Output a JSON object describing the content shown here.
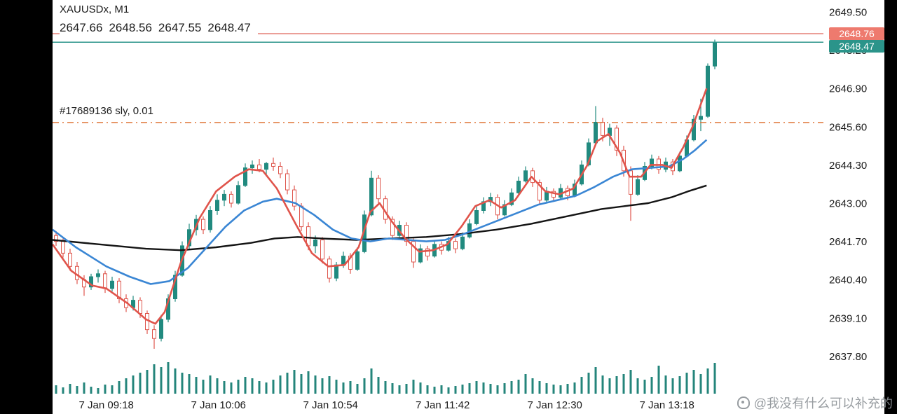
{
  "header": {
    "symbol": "XAUUSDx, M1",
    "ohlc": {
      "open": "2647.66",
      "high": "2648.56",
      "low": "2647.55",
      "close": "2648.47"
    }
  },
  "quote": {
    "ask": "2648.76",
    "bid": "2648.47",
    "ask_price": 2648.76,
    "bid_price": 2648.47
  },
  "order_line": {
    "label": "#17689136 sly, 0.01",
    "price": 2645.74
  },
  "watermark": {
    "text": "@我没有什么可以补充的"
  },
  "colors": {
    "background": "#ffffff",
    "bezel": "#000000",
    "text": "#1c1c1c",
    "bull_candle": "#218a7f",
    "bear_candle": "#de554c",
    "ma_fast_red": "#e0544b",
    "ma_mid_blue": "#3a86d4",
    "ma_slow_black": "#141414",
    "ask_line": "#e2776e",
    "bid_line": "#2b948a",
    "order_line": "#e07b3f",
    "volume": "#24857b",
    "ask_tag_bg": "#ee7a6e",
    "bid_tag_bg": "#2b948a"
  },
  "chart_data": {
    "type": "candlestick",
    "symbol": "XAUUSDx",
    "timeframe": "M1",
    "title": "XAUUSDx, M1",
    "start_time": "7 Jan 08:55",
    "candle_interval_min": 3,
    "price_axis": {
      "ticks": [
        2649.5,
        2648.2,
        2646.9,
        2645.6,
        2644.3,
        2643.0,
        2641.7,
        2640.4,
        2639.1,
        2637.8
      ],
      "min": 2637.0,
      "max": 2649.8,
      "grid": false
    },
    "time_axis": {
      "labels": [
        "7 Jan 09:18",
        "7 Jan 10:06",
        "7 Jan 10:54",
        "7 Jan 11:42",
        "7 Jan 12:30",
        "7 Jan 13:18"
      ],
      "minutes_from_start": [
        23,
        71,
        119,
        167,
        215,
        263
      ]
    },
    "candles": [
      [
        2641.9,
        2642.05,
        2641.55,
        2641.7
      ],
      [
        2641.7,
        2641.8,
        2641.15,
        2641.3
      ],
      [
        2641.3,
        2641.45,
        2640.7,
        2640.85
      ],
      [
        2640.85,
        2641.0,
        2640.25,
        2640.4
      ],
      [
        2640.4,
        2640.55,
        2639.85,
        2640.15
      ],
      [
        2640.15,
        2640.6,
        2640.05,
        2640.5
      ],
      [
        2640.5,
        2640.75,
        2640.3,
        2640.6
      ],
      [
        2640.6,
        2640.7,
        2639.95,
        2640.1
      ],
      [
        2640.1,
        2640.5,
        2640.0,
        2640.35
      ],
      [
        2640.35,
        2640.45,
        2639.6,
        2639.75
      ],
      [
        2639.75,
        2639.9,
        2639.3,
        2639.45
      ],
      [
        2639.45,
        2639.85,
        2639.35,
        2639.7
      ],
      [
        2639.7,
        2639.8,
        2639.1,
        2639.25
      ],
      [
        2639.25,
        2639.35,
        2638.55,
        2638.7
      ],
      [
        2638.7,
        2638.85,
        2638.05,
        2638.4
      ],
      [
        2638.4,
        2639.2,
        2638.3,
        2639.05
      ],
      [
        2639.05,
        2639.9,
        2638.95,
        2639.75
      ],
      [
        2639.75,
        2640.7,
        2639.65,
        2640.55
      ],
      [
        2640.55,
        2641.7,
        2640.5,
        2641.55
      ],
      [
        2641.55,
        2642.3,
        2641.45,
        2642.1
      ],
      [
        2642.1,
        2642.6,
        2641.9,
        2642.45
      ],
      [
        2642.45,
        2642.55,
        2641.95,
        2642.1
      ],
      [
        2642.1,
        2642.9,
        2642.0,
        2642.75
      ],
      [
        2642.75,
        2643.3,
        2642.6,
        2643.1
      ],
      [
        2643.1,
        2643.45,
        2642.9,
        2643.3
      ],
      [
        2643.3,
        2643.4,
        2642.85,
        2643.0
      ],
      [
        2643.0,
        2643.75,
        2642.95,
        2643.6
      ],
      [
        2643.6,
        2644.35,
        2643.55,
        2644.2
      ],
      [
        2644.2,
        2644.45,
        2644.0,
        2644.3
      ],
      [
        2644.3,
        2644.5,
        2644.05,
        2644.15
      ],
      [
        2644.15,
        2644.4,
        2643.95,
        2644.35
      ],
      [
        2644.35,
        2644.55,
        2644.1,
        2644.25
      ],
      [
        2644.25,
        2644.4,
        2643.85,
        2644.0
      ],
      [
        2644.0,
        2644.15,
        2643.3,
        2643.45
      ],
      [
        2643.45,
        2643.6,
        2642.75,
        2642.9
      ],
      [
        2642.9,
        2643.0,
        2642.05,
        2642.2
      ],
      [
        2642.2,
        2642.35,
        2641.4,
        2641.55
      ],
      [
        2641.55,
        2641.9,
        2641.3,
        2641.75
      ],
      [
        2641.75,
        2641.85,
        2640.95,
        2641.1
      ],
      [
        2641.1,
        2641.2,
        2640.3,
        2640.45
      ],
      [
        2640.45,
        2641.0,
        2640.35,
        2640.9
      ],
      [
        2640.9,
        2641.35,
        2640.8,
        2641.2
      ],
      [
        2641.2,
        2641.3,
        2640.6,
        2640.75
      ],
      [
        2640.75,
        2641.5,
        2640.7,
        2641.35
      ],
      [
        2641.35,
        2642.75,
        2641.3,
        2642.6
      ],
      [
        2642.6,
        2644.1,
        2642.55,
        2643.85
      ],
      [
        2643.85,
        2643.95,
        2643.0,
        2643.15
      ],
      [
        2643.15,
        2643.25,
        2642.3,
        2642.45
      ],
      [
        2642.45,
        2642.55,
        2641.75,
        2641.9
      ],
      [
        2641.9,
        2642.4,
        2641.85,
        2642.25
      ],
      [
        2642.25,
        2642.35,
        2641.55,
        2641.7
      ],
      [
        2641.7,
        2641.8,
        2640.8,
        2641.0
      ],
      [
        2641.0,
        2641.6,
        2640.95,
        2641.45
      ],
      [
        2641.45,
        2641.55,
        2641.05,
        2641.2
      ],
      [
        2641.2,
        2641.75,
        2641.15,
        2641.6
      ],
      [
        2641.6,
        2641.7,
        2641.25,
        2641.4
      ],
      [
        2641.4,
        2641.85,
        2641.35,
        2641.7
      ],
      [
        2641.7,
        2641.8,
        2641.3,
        2641.45
      ],
      [
        2641.45,
        2642.0,
        2641.4,
        2641.85
      ],
      [
        2641.85,
        2642.45,
        2641.8,
        2642.3
      ],
      [
        2642.3,
        2642.9,
        2642.25,
        2642.75
      ],
      [
        2642.75,
        2643.2,
        2642.65,
        2643.05
      ],
      [
        2643.05,
        2643.35,
        2642.9,
        2643.2
      ],
      [
        2643.2,
        2643.3,
        2642.45,
        2642.6
      ],
      [
        2642.6,
        2643.1,
        2642.55,
        2642.95
      ],
      [
        2642.95,
        2643.5,
        2642.9,
        2643.35
      ],
      [
        2643.35,
        2643.9,
        2643.3,
        2643.75
      ],
      [
        2643.75,
        2644.25,
        2643.7,
        2644.1
      ],
      [
        2644.1,
        2644.2,
        2643.55,
        2643.7
      ],
      [
        2643.7,
        2643.8,
        2642.95,
        2643.1
      ],
      [
        2643.1,
        2643.55,
        2643.0,
        2643.4
      ],
      [
        2643.4,
        2643.5,
        2643.05,
        2643.2
      ],
      [
        2643.2,
        2643.65,
        2643.15,
        2643.5
      ],
      [
        2643.5,
        2643.6,
        2643.1,
        2643.25
      ],
      [
        2643.25,
        2643.8,
        2643.2,
        2643.65
      ],
      [
        2643.65,
        2644.45,
        2643.6,
        2644.3
      ],
      [
        2644.3,
        2645.2,
        2644.25,
        2645.05
      ],
      [
        2645.05,
        2646.3,
        2645.0,
        2645.75
      ],
      [
        2645.75,
        2645.9,
        2645.1,
        2645.3
      ],
      [
        2645.3,
        2645.7,
        2644.95,
        2645.55
      ],
      [
        2645.55,
        2645.65,
        2644.6,
        2644.8
      ],
      [
        2644.8,
        2644.95,
        2643.9,
        2644.1
      ],
      [
        2644.1,
        2644.25,
        2642.4,
        2643.3
      ],
      [
        2643.3,
        2643.95,
        2643.25,
        2643.8
      ],
      [
        2643.8,
        2644.4,
        2643.75,
        2644.25
      ],
      [
        2644.25,
        2644.65,
        2644.15,
        2644.5
      ],
      [
        2644.5,
        2644.6,
        2644.0,
        2644.15
      ],
      [
        2644.15,
        2644.55,
        2644.05,
        2644.4
      ],
      [
        2644.4,
        2644.5,
        2643.95,
        2644.1
      ],
      [
        2644.1,
        2644.75,
        2644.05,
        2644.6
      ],
      [
        2644.6,
        2645.3,
        2644.55,
        2645.15
      ],
      [
        2645.15,
        2646.0,
        2645.1,
        2645.85
      ],
      [
        2645.85,
        2646.55,
        2645.45,
        2645.95
      ],
      [
        2645.95,
        2647.75,
        2645.9,
        2647.66
      ],
      [
        2647.66,
        2648.56,
        2647.55,
        2648.47
      ]
    ],
    "volumes": [
      12,
      9,
      14,
      11,
      16,
      10,
      8,
      13,
      12,
      18,
      22,
      26,
      30,
      34,
      42,
      38,
      45,
      36,
      30,
      28,
      24,
      20,
      26,
      22,
      18,
      16,
      20,
      24,
      22,
      18,
      16,
      20,
      26,
      30,
      34,
      28,
      32,
      26,
      22,
      25,
      20,
      16,
      18,
      14,
      22,
      36,
      24,
      18,
      15,
      12,
      14,
      20,
      16,
      12,
      10,
      12,
      9,
      11,
      13,
      15,
      18,
      16,
      14,
      12,
      15,
      18,
      20,
      28,
      22,
      18,
      15,
      13,
      12,
      14,
      16,
      24,
      30,
      38,
      26,
      22,
      25,
      28,
      34,
      22,
      20,
      24,
      40,
      26,
      22,
      25,
      30,
      34,
      28,
      36,
      44
    ],
    "overlays": {
      "ma_red": [
        [
          0,
          2641.6
        ],
        [
          8,
          2640.7
        ],
        [
          17,
          2640.2
        ],
        [
          23,
          2640.1
        ],
        [
          32,
          2639.6
        ],
        [
          40,
          2639.05
        ],
        [
          44,
          2638.9
        ],
        [
          48,
          2639.3
        ],
        [
          55,
          2641.0
        ],
        [
          63,
          2642.5
        ],
        [
          70,
          2643.4
        ],
        [
          78,
          2643.9
        ],
        [
          84,
          2644.15
        ],
        [
          90,
          2644.1
        ],
        [
          96,
          2643.5
        ],
        [
          104,
          2642.3
        ],
        [
          111,
          2641.3
        ],
        [
          118,
          2640.85
        ],
        [
          125,
          2640.9
        ],
        [
          131,
          2641.5
        ],
        [
          136,
          2642.7
        ],
        [
          140,
          2643.0
        ],
        [
          145,
          2642.4
        ],
        [
          151,
          2641.8
        ],
        [
          157,
          2641.35
        ],
        [
          163,
          2641.4
        ],
        [
          169,
          2641.6
        ],
        [
          175,
          2642.2
        ],
        [
          181,
          2642.9
        ],
        [
          187,
          2643.1
        ],
        [
          192,
          2642.85
        ],
        [
          198,
          2643.1
        ],
        [
          205,
          2643.9
        ],
        [
          211,
          2643.4
        ],
        [
          217,
          2643.3
        ],
        [
          223,
          2643.5
        ],
        [
          229,
          2644.3
        ],
        [
          233,
          2645.1
        ],
        [
          238,
          2645.35
        ],
        [
          243,
          2644.7
        ],
        [
          247,
          2643.9
        ],
        [
          252,
          2643.9
        ],
        [
          256,
          2644.3
        ],
        [
          261,
          2644.3
        ],
        [
          265,
          2644.2
        ],
        [
          270,
          2644.9
        ],
        [
          274,
          2645.6
        ],
        [
          280,
          2646.9
        ]
      ],
      "ma_blue": [
        [
          0,
          2642.1
        ],
        [
          10,
          2641.5
        ],
        [
          23,
          2640.85
        ],
        [
          33,
          2640.5
        ],
        [
          42,
          2640.25
        ],
        [
          50,
          2640.35
        ],
        [
          58,
          2640.8
        ],
        [
          66,
          2641.5
        ],
        [
          74,
          2642.2
        ],
        [
          82,
          2642.75
        ],
        [
          90,
          2643.05
        ],
        [
          96,
          2643.15
        ],
        [
          104,
          2643.0
        ],
        [
          112,
          2642.6
        ],
        [
          120,
          2642.1
        ],
        [
          128,
          2641.8
        ],
        [
          136,
          2641.7
        ],
        [
          144,
          2641.8
        ],
        [
          152,
          2641.75
        ],
        [
          160,
          2641.7
        ],
        [
          168,
          2641.75
        ],
        [
          176,
          2641.95
        ],
        [
          184,
          2642.2
        ],
        [
          192,
          2642.45
        ],
        [
          200,
          2642.7
        ],
        [
          208,
          2642.95
        ],
        [
          216,
          2643.1
        ],
        [
          224,
          2643.25
        ],
        [
          232,
          2643.55
        ],
        [
          240,
          2643.9
        ],
        [
          248,
          2644.15
        ],
        [
          256,
          2644.2
        ],
        [
          264,
          2644.25
        ],
        [
          270,
          2644.5
        ],
        [
          275,
          2644.8
        ],
        [
          280,
          2645.15
        ]
      ],
      "ma_black": [
        [
          0,
          2641.75
        ],
        [
          20,
          2641.6
        ],
        [
          40,
          2641.45
        ],
        [
          55,
          2641.4
        ],
        [
          70,
          2641.5
        ],
        [
          85,
          2641.65
        ],
        [
          95,
          2641.8
        ],
        [
          105,
          2641.85
        ],
        [
          115,
          2641.8
        ],
        [
          130,
          2641.75
        ],
        [
          145,
          2641.8
        ],
        [
          160,
          2641.85
        ],
        [
          175,
          2641.95
        ],
        [
          190,
          2642.1
        ],
        [
          205,
          2642.3
        ],
        [
          220,
          2642.55
        ],
        [
          235,
          2642.8
        ],
        [
          245,
          2642.9
        ],
        [
          255,
          2643.0
        ],
        [
          265,
          2643.2
        ],
        [
          272,
          2643.4
        ],
        [
          280,
          2643.6
        ]
      ]
    }
  }
}
